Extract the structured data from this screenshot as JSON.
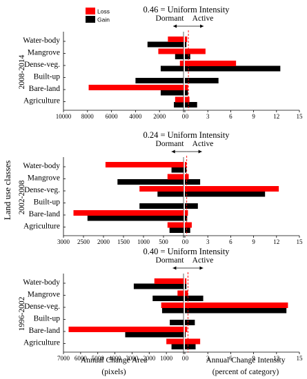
{
  "figure": {
    "y_axis_label": "Land use classes",
    "legend": [
      {
        "name": "Loss",
        "color": "#ff0000"
      },
      {
        "name": "Gain",
        "color": "#000000"
      }
    ],
    "left_axis_title": "Annual Change Area",
    "left_axis_unit": "(pixels)",
    "right_axis_title": "Annual Change Intensity",
    "right_axis_unit": "(percent of category)",
    "dormant_label": "Dormant",
    "active_label": "Active"
  },
  "chart_data": [
    {
      "type": "bar",
      "period": "2008-2014",
      "uniform_intensity_label": "0.46 = Uniform Intensity",
      "uniform_intensity": 0.46,
      "categories": [
        "Water-body",
        "Mangrove",
        "Dense-veg.",
        "Built-up",
        "Bare-land",
        "Agriculture"
      ],
      "left_axis": {
        "ticks": [
          "10000",
          "8000",
          "6000",
          "4000",
          "2000",
          "0"
        ],
        "max": 10000
      },
      "right_axis": {
        "ticks": [
          "0",
          "3",
          "6",
          "9",
          "12",
          "15"
        ],
        "max": 15
      },
      "series": [
        {
          "name": "Loss",
          "panel": "area",
          "values": [
            1300,
            2100,
            300,
            0,
            7900,
            700
          ]
        },
        {
          "name": "Gain",
          "panel": "area",
          "values": [
            3000,
            700,
            1900,
            4000,
            1900,
            800
          ]
        },
        {
          "name": "Loss",
          "panel": "intensity",
          "values": [
            0.3,
            2.7,
            6.7,
            0,
            0.4,
            0.6
          ]
        },
        {
          "name": "Gain",
          "panel": "intensity",
          "values": [
            0.2,
            0.7,
            12.5,
            4.4,
            0.4,
            1.6
          ]
        }
      ]
    },
    {
      "type": "bar",
      "period": "2002-2008",
      "uniform_intensity_label": "0.24 = Uniform Intensity",
      "uniform_intensity": 0.24,
      "categories": [
        "Water-body",
        "Mangrove",
        "Dense-veg.",
        "Built-up",
        "Bare-land",
        "Agriculture"
      ],
      "left_axis": {
        "ticks": [
          "3000",
          "2500",
          "2000",
          "1500",
          "1000",
          "500",
          "0"
        ],
        "max": 3000
      },
      "right_axis": {
        "ticks": [
          "0",
          "3",
          "6",
          "9",
          "12",
          "15"
        ],
        "max": 15
      },
      "series": [
        {
          "name": "Loss",
          "panel": "area",
          "values": [
            1950,
            400,
            1100,
            0,
            2750,
            400
          ]
        },
        {
          "name": "Gain",
          "panel": "area",
          "values": [
            300,
            1650,
            650,
            1100,
            2400,
            350
          ]
        },
        {
          "name": "Loss",
          "panel": "intensity",
          "values": [
            0.2,
            0.5,
            12.3,
            0,
            0.4,
            0.9
          ]
        },
        {
          "name": "Gain",
          "panel": "intensity",
          "values": [
            0.2,
            2.0,
            10.5,
            1.7,
            0.3,
            0.7
          ]
        }
      ]
    },
    {
      "type": "bar",
      "period": "1996-2002",
      "uniform_intensity_label": "0.40 = Uniform Intensity",
      "uniform_intensity": 0.4,
      "categories": [
        "Water-body",
        "Mangrove",
        "Dense-veg.",
        "Built-up",
        "Bare-land",
        "Agriculture"
      ],
      "left_axis": {
        "ticks": [
          "7000",
          "6000",
          "5000",
          "4000",
          "3000",
          "2000",
          "1000",
          "0"
        ],
        "max": 7000
      },
      "right_axis": {
        "ticks": [
          "0",
          "3",
          "6",
          "9",
          "12",
          "15"
        ],
        "max": 15
      },
      "series": [
        {
          "name": "Loss",
          "panel": "area",
          "values": [
            1700,
            350,
            1300,
            0,
            6700,
            1000
          ]
        },
        {
          "name": "Gain",
          "panel": "area",
          "values": [
            2900,
            1800,
            1250,
            800,
            3400,
            700
          ]
        },
        {
          "name": "Loss",
          "panel": "intensity",
          "values": [
            0.2,
            0.4,
            13.5,
            0,
            0.3,
            2.0
          ]
        },
        {
          "name": "Gain",
          "panel": "intensity",
          "values": [
            0.2,
            2.4,
            13.3,
            1.3,
            0.1,
            1.4
          ]
        }
      ]
    }
  ]
}
